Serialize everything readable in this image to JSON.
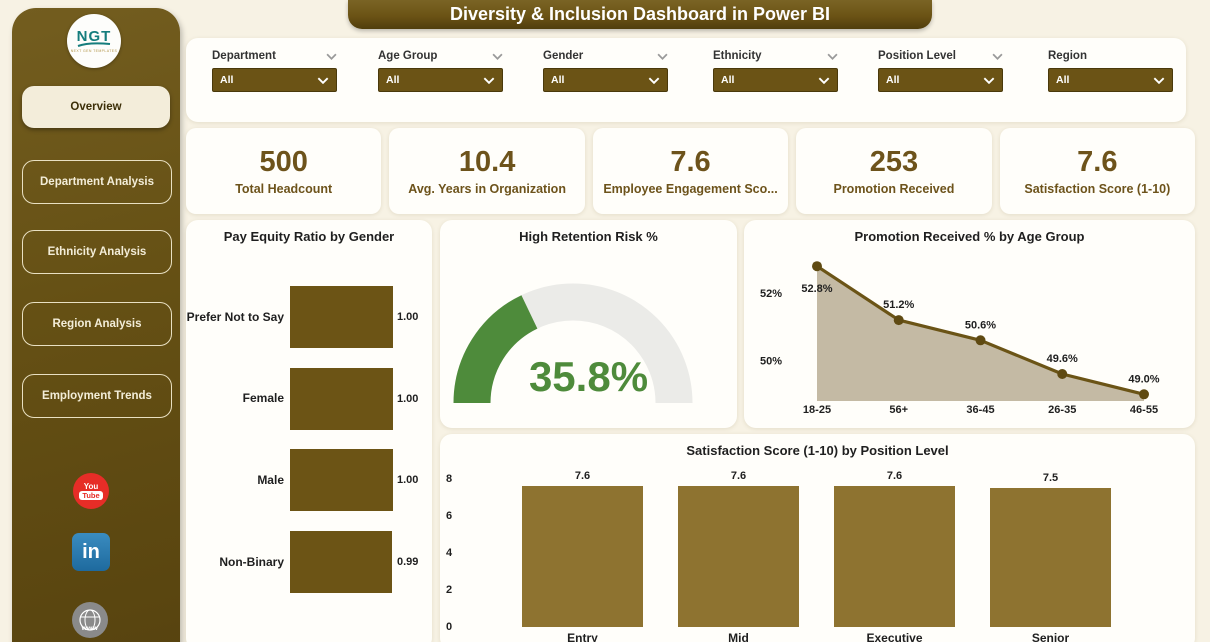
{
  "title": "Diversity & Inclusion Dashboard in Power BI",
  "sidebar": {
    "brand": "NGT",
    "brand_tagline": "NEXT GEN TEMPLATES",
    "nav": [
      {
        "label": "Overview",
        "active": true
      },
      {
        "label": "Department Analysis",
        "active": false
      },
      {
        "label": "Ethnicity Analysis",
        "active": false
      },
      {
        "label": "Region Analysis",
        "active": false
      },
      {
        "label": "Employment Trends",
        "active": false
      }
    ],
    "social": [
      {
        "name": "youtube",
        "text_top": "You",
        "text_bottom": "Tube"
      },
      {
        "name": "linkedin",
        "text": "in"
      },
      {
        "name": "website",
        "text": "www"
      }
    ]
  },
  "filters": {
    "items": [
      {
        "label": "Department",
        "value": "All",
        "header_chevron": true
      },
      {
        "label": "Age Group",
        "value": "All",
        "header_chevron": true
      },
      {
        "label": "Gender",
        "value": "All",
        "header_chevron": true
      },
      {
        "label": "Ethnicity",
        "value": "All",
        "header_chevron": true
      },
      {
        "label": "Position Level",
        "value": "All",
        "header_chevron": true
      },
      {
        "label": "Region",
        "value": "All",
        "header_chevron": false
      }
    ]
  },
  "kpis": [
    {
      "value": "500",
      "label": "Total Headcount"
    },
    {
      "value": "10.4",
      "label": "Avg. Years in Organization"
    },
    {
      "value": "7.6",
      "label": "Employee Engagement Sco..."
    },
    {
      "value": "253",
      "label": "Promotion Received"
    },
    {
      "value": "7.6",
      "label": "Satisfaction Score (1-10)"
    }
  ],
  "colors": {
    "sidebar": "#655014",
    "accent": "#6b5315",
    "bar_dark": "#6c5415",
    "bar_gold": "#8e7330",
    "line": "#6b5416",
    "marker": "#5f4a12",
    "area_fill": "#c4baa4",
    "gauge_green": "#4e8b3b",
    "gauge_track": "#ebebe8",
    "background": "#f7f2e4",
    "kpi_text": "#6d531b"
  },
  "chart_data": [
    {
      "type": "bar",
      "orientation": "horizontal",
      "title": "Pay Equity Ratio by Gender",
      "categories": [
        "Prefer Not to Say",
        "Female",
        "Male",
        "Non-Binary"
      ],
      "values": [
        1.0,
        1.0,
        1.0,
        0.99
      ],
      "xlim": [
        0,
        1.0
      ],
      "data_labels": [
        "1.00",
        "1.00",
        "1.00",
        "0.99"
      ]
    },
    {
      "type": "gauge",
      "title": "High Retention Risk %",
      "value": 35.8,
      "display": "35.8%",
      "min": 0,
      "max": 100
    },
    {
      "type": "area",
      "title": "Promotion Received % by Age Group",
      "categories": [
        "18-25",
        "56+",
        "36-45",
        "26-35",
        "46-55"
      ],
      "values": [
        52.8,
        51.2,
        50.6,
        49.6,
        49.0
      ],
      "data_labels": [
        "52.8%",
        "51.2%",
        "50.6%",
        "49.6%",
        "49.0%"
      ],
      "ytick_labels": [
        "52%",
        "50%"
      ],
      "ytick_values": [
        52,
        50
      ],
      "ylim": [
        48.8,
        53.2
      ]
    },
    {
      "type": "bar",
      "orientation": "vertical",
      "title": "Satisfaction Score (1-10) by Position Level",
      "categories": [
        "Entry",
        "Mid",
        "Executive",
        "Senior"
      ],
      "values": [
        7.6,
        7.6,
        7.6,
        7.5
      ],
      "data_labels": [
        "7.6",
        "7.6",
        "7.6",
        "7.5"
      ],
      "ytick_values": [
        0,
        2,
        4,
        6,
        8
      ],
      "ylim": [
        0,
        8
      ]
    }
  ]
}
